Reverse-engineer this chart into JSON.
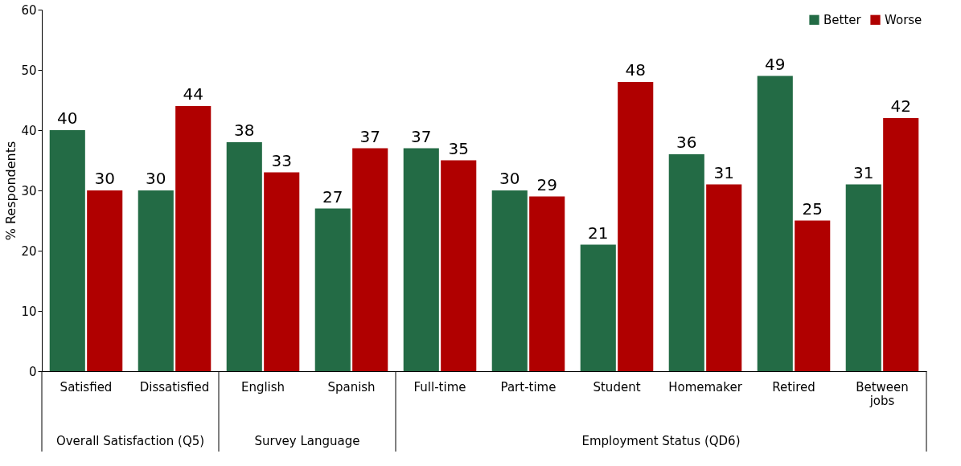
{
  "chart_data": {
    "type": "bar",
    "ylabel": "% Respondents",
    "categories": [
      "Satisfied",
      "Dissatisfied",
      "English",
      "Spanish",
      "Full-time",
      "Part-time",
      "Student",
      "Homemaker",
      "Retired",
      "Between jobs"
    ],
    "series": [
      {
        "name": "Better",
        "color": "#236b45",
        "values": [
          40,
          30,
          38,
          27,
          37,
          30,
          21,
          36,
          49,
          31
        ]
      },
      {
        "name": "Worse",
        "color": "#b00000",
        "values": [
          30,
          44,
          33,
          37,
          35,
          29,
          48,
          31,
          25,
          42
        ]
      }
    ],
    "ylim": [
      0,
      60
    ],
    "yticks": [
      0,
      10,
      20,
      30,
      40,
      50,
      60
    ],
    "grid": false,
    "legend": "top right",
    "data_labels": true,
    "annotations": [
      "Overall Satisfaction (Q5)",
      "Survey Language",
      "Employment Status (QD6)"
    ]
  }
}
